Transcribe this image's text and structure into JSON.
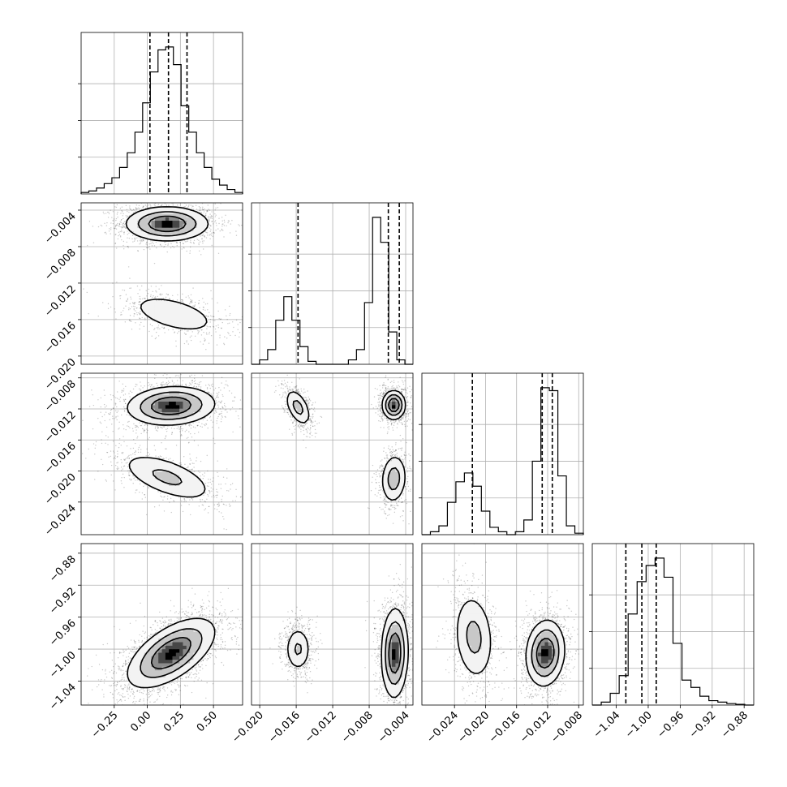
{
  "chart_data": {
    "type": "corner",
    "grid": true,
    "parameters": [
      {
        "range": [
          -0.5,
          0.72
        ],
        "ticks": [
          -0.25,
          0.0,
          0.25,
          0.5
        ],
        "tick_labels": [
          "−0.25",
          "0.00",
          "0.25",
          "0.50"
        ],
        "quantiles": [
          0.02,
          0.16,
          0.3
        ]
      },
      {
        "range": [
          -0.0209,
          -0.0032
        ],
        "ticks": [
          -0.004,
          -0.008,
          -0.012,
          -0.016,
          -0.02
        ],
        "tick_labels": [
          "−0.004",
          "−0.008",
          "−0.012",
          "−0.016",
          "−0.020"
        ],
        "x_ticks": [
          -0.02,
          -0.016,
          -0.012,
          -0.008,
          -0.004
        ],
        "x_tick_labels": [
          "−0.020",
          "−0.016",
          "−0.012",
          "−0.008",
          "−0.004"
        ],
        "quantiles": [
          -0.0158,
          -0.0059,
          -0.0047
        ]
      },
      {
        "range": [
          -0.0282,
          -0.0074
        ],
        "ticks": [
          -0.008,
          -0.012,
          -0.016,
          -0.02,
          -0.024
        ],
        "tick_labels": [
          "−0.008",
          "−0.012",
          "−0.016",
          "−0.020",
          "−0.024"
        ],
        "x_ticks": [
          -0.024,
          -0.02,
          -0.016,
          -0.012,
          -0.008
        ],
        "x_tick_labels": [
          "−0.024",
          "−0.020",
          "−0.016",
          "−0.012",
          "−0.008"
        ],
        "quantiles": [
          -0.0217,
          -0.0127,
          -0.0114
        ]
      },
      {
        "range": [
          -1.07,
          -0.868
        ],
        "ticks": [
          -0.88,
          -0.92,
          -0.96,
          -1.0,
          -1.04
        ],
        "tick_labels": [
          "−0.88",
          "−0.92",
          "−0.96",
          "−1.00",
          "−1.04"
        ],
        "x_ticks": [
          -1.04,
          -1.0,
          -0.96,
          -0.92,
          -0.88
        ],
        "x_tick_labels": [
          "−1.04",
          "−1.00",
          "−0.96",
          "−0.92",
          "−0.88"
        ],
        "quantiles": [
          -1.028,
          -1.008,
          -0.99
        ]
      }
    ],
    "histograms": [
      [
        0.01,
        0.02,
        0.04,
        0.07,
        0.11,
        0.18,
        0.28,
        0.42,
        0.62,
        0.83,
        0.98,
        1.0,
        0.88,
        0.6,
        0.42,
        0.28,
        0.18,
        0.1,
        0.06,
        0.03,
        0.01
      ],
      [
        0.0,
        0.03,
        0.1,
        0.3,
        0.46,
        0.3,
        0.12,
        0.02,
        0.0,
        0.0,
        0.0,
        0.0,
        0.03,
        0.1,
        0.42,
        1.0,
        0.83,
        0.22,
        0.03,
        0.0
      ],
      [
        0.0,
        0.02,
        0.06,
        0.22,
        0.36,
        0.42,
        0.33,
        0.16,
        0.05,
        0.02,
        0.0,
        0.02,
        0.1,
        0.5,
        1.0,
        0.98,
        0.4,
        0.06,
        0.01
      ],
      [
        0.0,
        0.02,
        0.08,
        0.2,
        0.62,
        0.84,
        0.95,
        1.0,
        0.87,
        0.42,
        0.17,
        0.12,
        0.06,
        0.03,
        0.02,
        0.01,
        0.005,
        0.0
      ]
    ],
    "panels_2d": [
      {
        "x": 0,
        "y": 1,
        "modes": [
          {
            "cx": 0.15,
            "cy": -0.0055,
            "sx": 0.15,
            "sy": 0.0009,
            "rho": 0.0,
            "w": 1.0
          },
          {
            "cx": 0.2,
            "cy": -0.0154,
            "sx": 0.17,
            "sy": 0.0011,
            "rho": -0.5,
            "w": 0.35
          }
        ]
      },
      {
        "x": 0,
        "y": 2,
        "modes": [
          {
            "cx": 0.18,
            "cy": -0.0116,
            "sx": 0.16,
            "sy": 0.0012,
            "rho": 0.1,
            "w": 1.0
          },
          {
            "cx": 0.15,
            "cy": -0.0208,
            "sx": 0.18,
            "sy": 0.0016,
            "rho": -0.6,
            "w": 0.42
          }
        ]
      },
      {
        "x": 1,
        "y": 2,
        "modes": [
          {
            "cx": -0.0158,
            "cy": -0.0118,
            "sx": 0.0007,
            "sy": 0.0012,
            "rho": -0.5,
            "w": 0.45
          },
          {
            "cx": -0.0053,
            "cy": -0.0115,
            "sx": 0.0006,
            "sy": 0.0009,
            "rho": 0.0,
            "w": 1.0
          },
          {
            "cx": -0.0053,
            "cy": -0.021,
            "sx": 0.0007,
            "sy": 0.0016,
            "rho": 0.1,
            "w": 0.5
          }
        ]
      },
      {
        "x": 0,
        "y": 3,
        "modes": [
          {
            "cx": 0.18,
            "cy": -1.005,
            "sx": 0.16,
            "sy": 0.021,
            "rho": 0.6,
            "w": 1.0
          }
        ]
      },
      {
        "x": 1,
        "y": 3,
        "modes": [
          {
            "cx": -0.0158,
            "cy": -1.0,
            "sx": 0.0007,
            "sy": 0.014,
            "rho": 0.0,
            "w": 0.4
          },
          {
            "cx": -0.0052,
            "cy": -1.005,
            "sx": 0.0007,
            "sy": 0.027,
            "rho": 0.05,
            "w": 1.0
          }
        ]
      },
      {
        "x": 2,
        "y": 3,
        "modes": [
          {
            "cx": -0.0215,
            "cy": -0.985,
            "sx": 0.0013,
            "sy": 0.028,
            "rho": -0.15,
            "w": 0.45
          },
          {
            "cx": -0.0123,
            "cy": -1.005,
            "sx": 0.0012,
            "sy": 0.02,
            "rho": 0.1,
            "w": 1.0
          }
        ]
      }
    ]
  }
}
